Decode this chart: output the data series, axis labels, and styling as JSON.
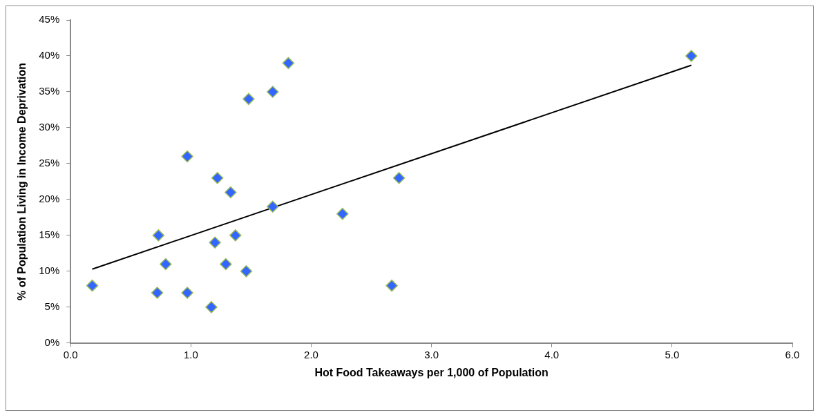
{
  "chart_data": {
    "type": "scatter",
    "xlabel": "Hot Food Takeaways per 1,000 of Population",
    "ylabel": "% of Population Living in Income Deprivation",
    "xlim": [
      0,
      6
    ],
    "ylim": [
      0,
      45
    ],
    "xticks": [
      {
        "value": 0,
        "label": "0.0"
      },
      {
        "value": 1,
        "label": "1.0"
      },
      {
        "value": 2,
        "label": "2.0"
      },
      {
        "value": 3,
        "label": "3.0"
      },
      {
        "value": 4,
        "label": "4.0"
      },
      {
        "value": 5,
        "label": "5.0"
      },
      {
        "value": 6,
        "label": "6.0"
      }
    ],
    "yticks": [
      {
        "value": 0,
        "label": "0%"
      },
      {
        "value": 5,
        "label": "5%"
      },
      {
        "value": 10,
        "label": "10%"
      },
      {
        "value": 15,
        "label": "15%"
      },
      {
        "value": 20,
        "label": "20%"
      },
      {
        "value": 25,
        "label": "25%"
      },
      {
        "value": 30,
        "label": "30%"
      },
      {
        "value": 35,
        "label": "35%"
      },
      {
        "value": 40,
        "label": "40%"
      },
      {
        "value": 45,
        "label": "45%"
      }
    ],
    "grid": false,
    "legend": false,
    "series": [
      {
        "type": "scatter",
        "color": "#3366ff",
        "marker": "diamond",
        "x": [
          0.18,
          0.73,
          0.79,
          0.72,
          0.97,
          0.97,
          1.17,
          1.2,
          1.22,
          1.29,
          1.33,
          1.37,
          1.46,
          1.48,
          1.68,
          1.68,
          1.81,
          2.26,
          2.73,
          2.67,
          5.16
        ],
        "values": [
          8,
          15,
          11,
          7,
          7,
          26,
          5,
          14,
          23,
          11,
          21,
          15,
          10,
          34,
          35,
          19,
          39,
          18,
          23,
          8,
          40
        ]
      },
      {
        "type": "line",
        "color": "#000000",
        "marker": "none",
        "x": [
          0.18,
          5.16
        ],
        "values": [
          10.3,
          38.7
        ]
      }
    ]
  }
}
